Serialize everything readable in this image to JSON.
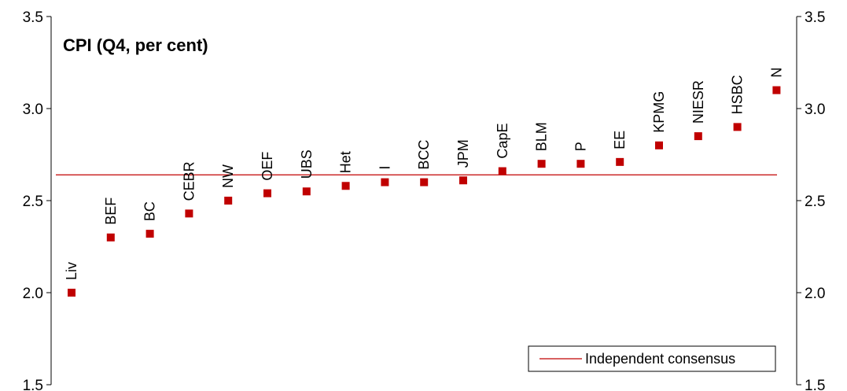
{
  "chart_data": {
    "type": "scatter",
    "title": "CPI (Q4, per cent)",
    "xlabel": "",
    "ylabel": "",
    "ylim": [
      1.5,
      3.5
    ],
    "yticks": [
      "1.5",
      "2.0",
      "2.5",
      "3.0",
      "3.5"
    ],
    "grid": false,
    "legend_position": "bottom-right",
    "marker_color": "#C00000",
    "line_color": "#C00000",
    "points": [
      {
        "label": "Liv",
        "y": 2.0
      },
      {
        "label": "BEF",
        "y": 2.3
      },
      {
        "label": "BC",
        "y": 2.32
      },
      {
        "label": "CEBR",
        "y": 2.43
      },
      {
        "label": "NW",
        "y": 2.5
      },
      {
        "label": "OEF",
        "y": 2.54
      },
      {
        "label": "UBS",
        "y": 2.55
      },
      {
        "label": "Het",
        "y": 2.58
      },
      {
        "label": "I",
        "y": 2.6
      },
      {
        "label": "BCC",
        "y": 2.6
      },
      {
        "label": "JPM",
        "y": 2.61
      },
      {
        "label": "CapE",
        "y": 2.66
      },
      {
        "label": "BLM",
        "y": 2.7
      },
      {
        "label": "P",
        "y": 2.7
      },
      {
        "label": "EE",
        "y": 2.71
      },
      {
        "label": "KPMG",
        "y": 2.8
      },
      {
        "label": "NIESR",
        "y": 2.85
      },
      {
        "label": "HSBC",
        "y": 2.9
      },
      {
        "label": "N",
        "y": 3.1
      }
    ],
    "consensus": {
      "name": "Independent consensus",
      "value": 2.64
    }
  }
}
